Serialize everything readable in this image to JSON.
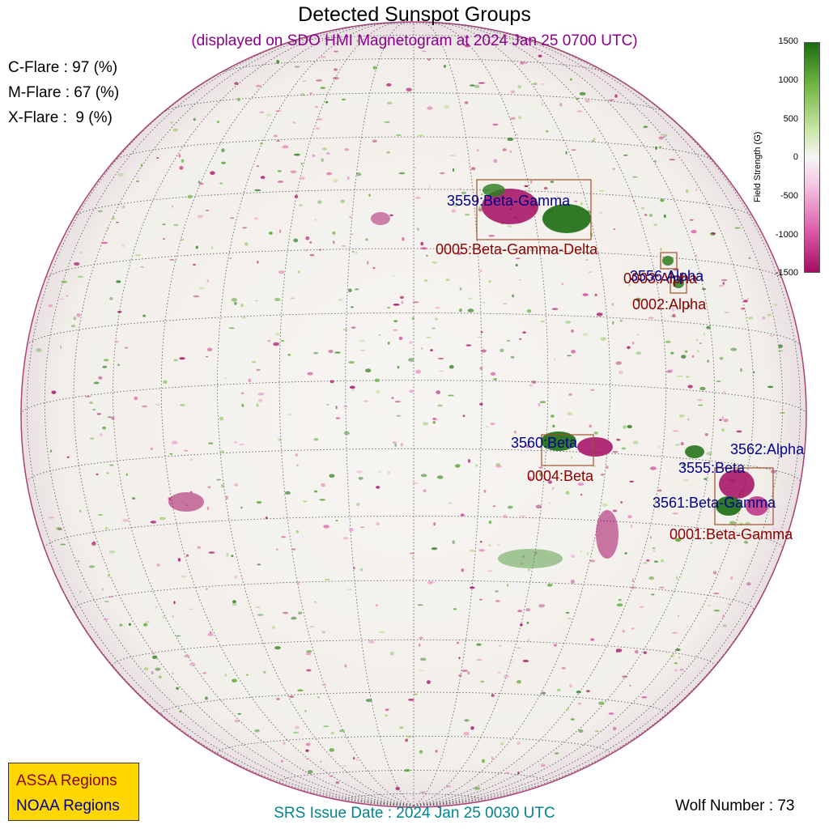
{
  "title": "Detected Sunspot Groups",
  "subtitle": "(displayed on SDO HMI Magnetogram at 2024 Jan 25 0700 UTC)",
  "flare_probabilities": [
    {
      "label": "C-Flare : 97 (%)"
    },
    {
      "label": "M-Flare : 67 (%)"
    },
    {
      "label": "X-Flare :  9 (%)"
    }
  ],
  "colorbar": {
    "title": "Field Strength (G)",
    "ticks": [
      "1500",
      "1000",
      "500",
      "0",
      "-500",
      "-1000",
      "-1500"
    ],
    "colors": {
      "positive": "#1b6d12",
      "neutral": "#f6f6f6",
      "negative": "#a30c62"
    }
  },
  "regions": {
    "noaa": [
      "3559:Beta-Gamma",
      "3556:Alpha",
      "3560:Beta",
      "3562:Alpha",
      "3555:Beta",
      "3561:Beta-Gamma"
    ],
    "assa": [
      "0005:Beta-Gamma-Delta",
      "0003:Alpha",
      "0002:Alpha",
      "0004:Beta",
      "0001:Beta-Gamma"
    ]
  },
  "legend": {
    "assa": "ASSA Regions",
    "noaa": "NOAA Regions"
  },
  "srs_issue": "SRS Issue Date : 2024 Jan 25 0030 UTC",
  "wolf_number": "Wolf Number : 73"
}
